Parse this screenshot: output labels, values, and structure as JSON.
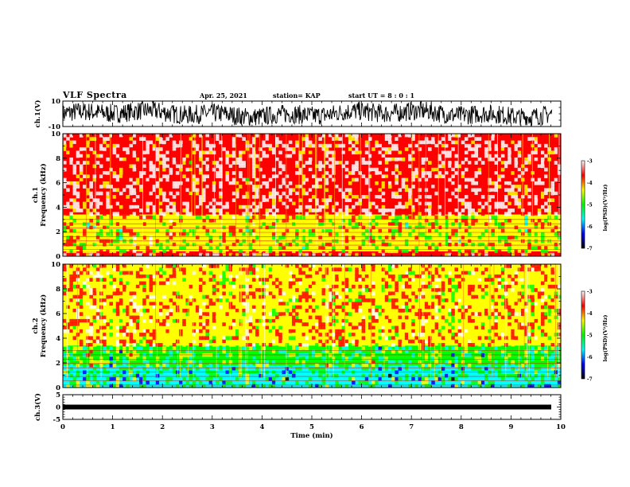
{
  "header": {
    "title": "VLF Spectra",
    "date": "Apr. 25, 2021",
    "station": "station= KAP",
    "start": "start  UT =   8 : 0  : 1"
  },
  "colorbar": {
    "label": "log(PSD)(V²/Hz)",
    "ticks": [
      "-3",
      "-4",
      "-5",
      "-6",
      "-7"
    ],
    "colors": [
      "#ffffff",
      "#ff0000",
      "#ffff00",
      "#00ff00",
      "#00ffff",
      "#0000ff",
      "#000000"
    ]
  },
  "chart_data": [
    {
      "type": "line",
      "panel": "ch1-waveform",
      "ylabel": "ch.1(V)",
      "ylim": [
        -10,
        10
      ],
      "yticks": [
        "10",
        "-10"
      ],
      "xlim": [
        0,
        10
      ],
      "data_end_min": 9.82,
      "series": [
        {
          "envelope_min": -9,
          "envelope_max": 10
        }
      ]
    },
    {
      "type": "heatmap",
      "panel": "ch1-spectrogram",
      "ylabel": "ch.1\nFrequency (kHz)",
      "ylim": [
        0,
        10
      ],
      "yticks": [
        "0",
        "2",
        "4",
        "6",
        "8",
        "10"
      ],
      "xlim": [
        0,
        10
      ],
      "zlim": [
        -7,
        -3
      ],
      "bands": [
        {
          "f_from": 3.4,
          "f_to": 10,
          "log_psd": -3.4
        },
        {
          "f_from": 0.4,
          "f_to": 3.4,
          "log_psd": -4.4
        },
        {
          "f_from": 0.0,
          "f_to": 0.4,
          "log_psd": -3.6
        }
      ]
    },
    {
      "type": "heatmap",
      "panel": "ch2-spectrogram",
      "ylabel": "ch.2\nFrequency (kHz)",
      "ylim": [
        0,
        10
      ],
      "yticks": [
        "0",
        "2",
        "4",
        "6",
        "8",
        "10"
      ],
      "xlim": [
        0,
        10
      ],
      "zlim": [
        -7,
        -3
      ],
      "bands": [
        {
          "f_from": 3.4,
          "f_to": 10,
          "log_psd": -4.0
        },
        {
          "f_from": 1.8,
          "f_to": 3.4,
          "log_psd": -5.0
        },
        {
          "f_from": 0.0,
          "f_to": 1.8,
          "log_psd": -5.4
        }
      ]
    },
    {
      "type": "line",
      "panel": "ch3-waveform",
      "ylabel": "ch.3(V)",
      "ylim": [
        -5,
        5
      ],
      "yticks": [
        "5",
        "0",
        "-5"
      ],
      "xlabel": "Time  (min)",
      "xlim": [
        0,
        10
      ],
      "xticks": [
        "0",
        "1",
        "2",
        "3",
        "4",
        "5",
        "6",
        "7",
        "8",
        "9",
        "10"
      ],
      "series": [
        {
          "level": 0
        }
      ]
    }
  ]
}
